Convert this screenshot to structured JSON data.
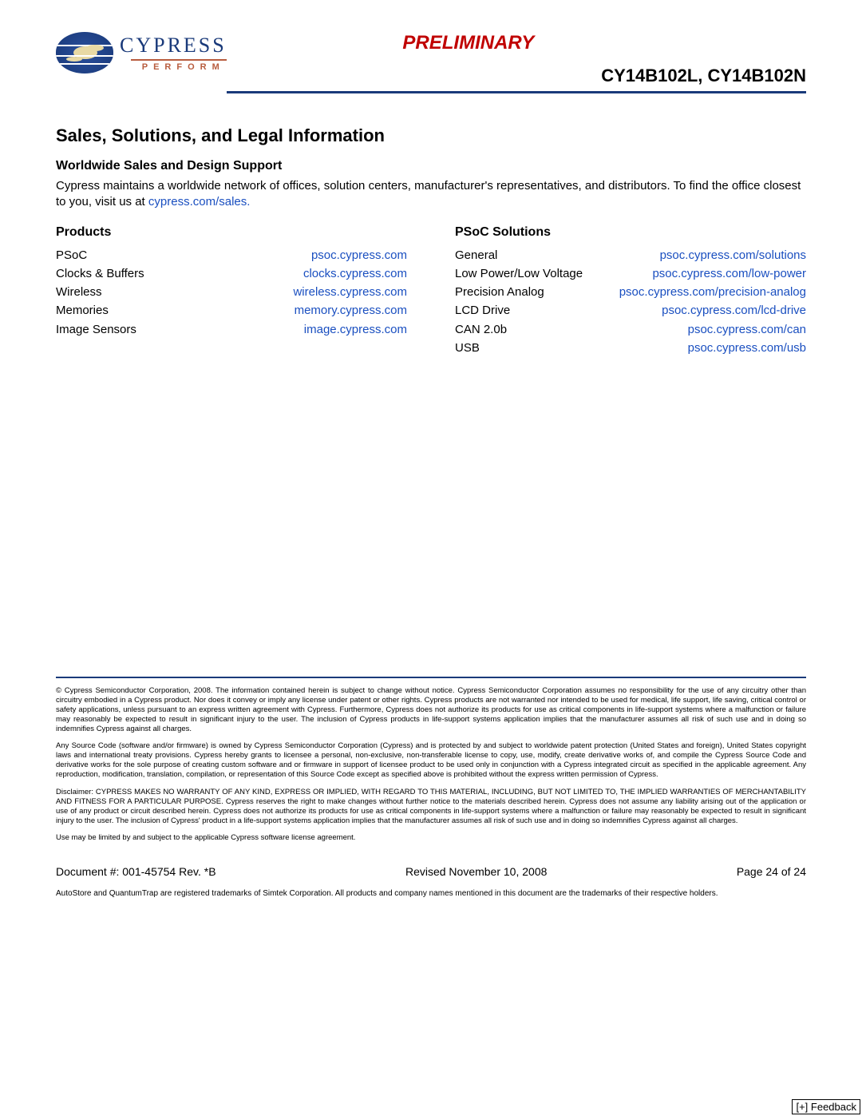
{
  "brand": {
    "name": "CYPRESS",
    "tagline": "PERFORM"
  },
  "header": {
    "preliminary": "PRELIMINARY",
    "part_numbers": "CY14B102L, CY14B102N"
  },
  "section_title": "Sales, Solutions, and Legal Information",
  "support": {
    "heading": "Worldwide Sales and Design Support",
    "text_prefix": "Cypress maintains a worldwide network of offices, solution centers, manufacturer's representatives, and distributors. To find the office closest to you, visit us at ",
    "link_text": "cypress.com/sales."
  },
  "products": {
    "heading": "Products",
    "items": [
      {
        "label": "PSoC",
        "url": "psoc.cypress.com"
      },
      {
        "label": "Clocks & Buffers",
        "url": "clocks.cypress.com"
      },
      {
        "label": "Wireless",
        "url": "wireless.cypress.com"
      },
      {
        "label": "Memories",
        "url": "memory.cypress.com"
      },
      {
        "label": "Image Sensors",
        "url": "image.cypress.com"
      }
    ]
  },
  "solutions": {
    "heading": "PSoC Solutions",
    "items": [
      {
        "label": "General",
        "url": "psoc.cypress.com/solutions"
      },
      {
        "label": "Low Power/Low Voltage",
        "url": "psoc.cypress.com/low-power"
      },
      {
        "label": "Precision Analog",
        "url": "psoc.cypress.com/precision-analog"
      },
      {
        "label": "LCD Drive",
        "url": "psoc.cypress.com/lcd-drive"
      },
      {
        "label": "CAN 2.0b",
        "url": "psoc.cypress.com/can"
      },
      {
        "label": "USB",
        "url": "psoc.cypress.com/usb"
      }
    ]
  },
  "legal": {
    "p1": "© Cypress Semiconductor Corporation, 2008. The information contained herein is subject to change without notice. Cypress Semiconductor Corporation assumes no responsibility for the use of any circuitry other than circuitry embodied in a Cypress product. Nor does it convey or imply any license under patent or other rights. Cypress products are not warranted nor intended to be used for medical, life support, life saving, critical control or safety applications, unless pursuant to an express written agreement with Cypress. Furthermore, Cypress does not authorize its products for use as critical components in life-support systems where a malfunction or failure may reasonably be expected to result in significant injury to the user. The inclusion of Cypress products in life-support systems application implies that the manufacturer assumes all risk of such use and in doing so indemnifies Cypress against all charges.",
    "p2": "Any Source Code (software and/or firmware) is owned by Cypress Semiconductor Corporation (Cypress) and is protected by and subject to worldwide patent protection (United States and foreign), United States copyright laws and international treaty provisions. Cypress hereby grants to licensee a personal, non-exclusive, non-transferable license to copy, use, modify, create derivative works of, and compile the Cypress Source Code and derivative works for the sole purpose of creating custom software and or firmware in support of licensee product to be used only in conjunction with a Cypress integrated circuit as specified in the applicable agreement. Any reproduction, modification, translation, compilation, or representation of this Source Code except as specified above is prohibited without the express written permission of Cypress.",
    "p3": "Disclaimer: CYPRESS MAKES NO WARRANTY OF ANY KIND, EXPRESS OR IMPLIED, WITH REGARD TO THIS MATERIAL, INCLUDING, BUT NOT LIMITED TO, THE IMPLIED WARRANTIES OF MERCHANTABILITY AND FITNESS FOR A PARTICULAR PURPOSE. Cypress reserves the right to make changes without further notice to the materials described herein. Cypress does not assume any liability arising out of the application or use of any product or circuit described herein. Cypress does not authorize its products for use as critical components in life-support systems where a malfunction or failure may reasonably be expected to result in significant injury to the user. The inclusion of Cypress' product in a life-support systems application implies that the manufacturer assumes all risk of such use and in doing so indemnifies Cypress against all charges.",
    "p4": "Use may be limited by and subject to the applicable Cypress software license agreement."
  },
  "footer": {
    "doc_number": "Document #: 001-45754 Rev. *B",
    "revised": "Revised November 10, 2008",
    "page": "Page 24 of 24",
    "trademark": "AutoStore and QuantumTrap are registered trademarks of Simtek Corporation. All products and company names mentioned in this document are the trademarks of their respective holders."
  },
  "feedback_label": "[+] Feedback",
  "colors": {
    "link": "#1a4fc0",
    "rule_blue": "#1a3a7a",
    "preliminary_red": "#c00000",
    "tagline_orange": "#b85c3e"
  }
}
